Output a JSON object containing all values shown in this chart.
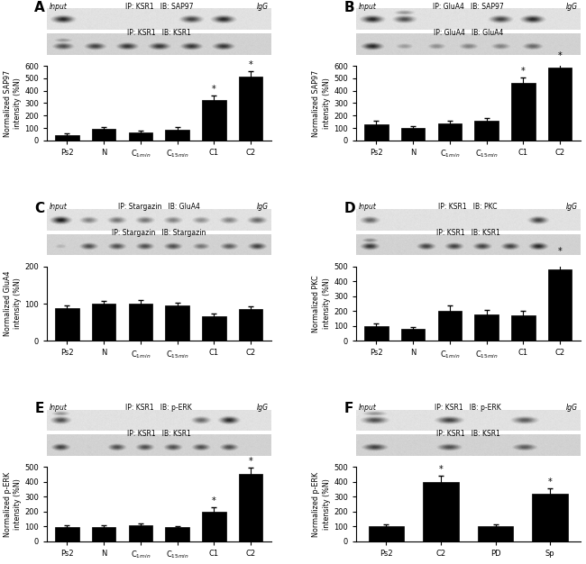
{
  "panel_A": {
    "wb1_label": "IP: KSR1   IB: SAP97",
    "wb2_label": "IP: KSR1   IB: KSR1",
    "ylabel": "Normalized SAP97\nintensity (%N)",
    "cat_labels": [
      "Ps2",
      "N",
      "C$_{1min}$",
      "C$_{15min}$",
      "C1",
      "C2"
    ],
    "values": [
      45,
      90,
      65,
      85,
      325,
      515
    ],
    "errors": [
      15,
      15,
      15,
      20,
      35,
      40
    ],
    "ylim": [
      0,
      600
    ],
    "yticks": [
      0,
      100,
      200,
      300,
      400,
      500,
      600
    ],
    "sig": [
      false,
      false,
      false,
      false,
      true,
      true
    ],
    "wb1_bands": [
      0.85,
      0.0,
      0.0,
      0.0,
      0.75,
      0.85,
      0.0
    ],
    "wb2_bands": [
      0.7,
      0.75,
      0.8,
      0.8,
      0.8,
      0.8,
      0.1
    ],
    "wb1_double": [
      false,
      false,
      false,
      false,
      false,
      false,
      false
    ],
    "wb2_double": [
      true,
      false,
      false,
      false,
      false,
      false,
      false
    ]
  },
  "panel_B": {
    "wb1_label": "IP: GluA4   IB: SAP97",
    "wb2_label": "IP: GluA4   IB: GluA4",
    "ylabel": "Normalized SAP97\nintensity (%N)",
    "cat_labels": [
      "Ps2",
      "N",
      "C$_{1min}$",
      "C$_{15min}$",
      "C1",
      "C2"
    ],
    "values": [
      130,
      100,
      140,
      155,
      460,
      590
    ],
    "errors": [
      25,
      15,
      20,
      25,
      45,
      40
    ],
    "ylim": [
      0,
      600
    ],
    "yticks": [
      0,
      100,
      200,
      300,
      400,
      500,
      600
    ],
    "sig": [
      false,
      false,
      false,
      false,
      true,
      true
    ],
    "wb1_bands": [
      0.85,
      0.7,
      0.0,
      0.0,
      0.75,
      0.85,
      0.0
    ],
    "wb2_bands": [
      0.85,
      0.4,
      0.45,
      0.5,
      0.5,
      0.6,
      0.0
    ],
    "wb1_double": [
      false,
      true,
      false,
      false,
      false,
      false,
      false
    ],
    "wb2_double": [
      false,
      false,
      false,
      false,
      false,
      false,
      false
    ]
  },
  "panel_C": {
    "wb1_label": "IP: Stargazin   IB: GluA4",
    "wb2_label": "IP: Stargazin   IB: Stargazin",
    "ylabel": "Normalized GluA4\nintensity (%N)",
    "cat_labels": [
      "Ps2",
      "N",
      "C$_{1min}$",
      "C$_{15min}$",
      "C1",
      "C2"
    ],
    "values": [
      87,
      100,
      100,
      95,
      67,
      85
    ],
    "errors": [
      8,
      8,
      10,
      8,
      6,
      8
    ],
    "ylim": [
      0,
      200
    ],
    "yticks": [
      0,
      100,
      200
    ],
    "sig": [
      false,
      false,
      false,
      false,
      false,
      false
    ],
    "wb1_bands": [
      0.9,
      0.5,
      0.55,
      0.55,
      0.5,
      0.45,
      0.5,
      0.6
    ],
    "wb2_bands": [
      0.3,
      0.7,
      0.7,
      0.7,
      0.7,
      0.55,
      0.65,
      0.75
    ],
    "wb1_double": [
      false,
      false,
      false,
      false,
      false,
      false,
      false,
      false
    ],
    "wb2_double": [
      false,
      false,
      false,
      false,
      false,
      false,
      false,
      false
    ]
  },
  "panel_D": {
    "wb1_label": "IP: KSR1   IB: PKC",
    "wb2_label": "IP: KSR1   IB: KSR1",
    "ylabel": "Normalized PKC\nintensity (%N)",
    "cat_labels": [
      "Ps2",
      "N",
      "C$_{1min}$",
      "C$_{15min}$",
      "C1",
      "C2"
    ],
    "values": [
      100,
      80,
      200,
      175,
      170,
      480
    ],
    "errors": [
      20,
      15,
      40,
      30,
      30,
      80
    ],
    "ylim": [
      0,
      500
    ],
    "yticks": [
      0,
      100,
      200,
      300,
      400,
      500
    ],
    "sig": [
      false,
      false,
      false,
      false,
      false,
      true
    ],
    "wb1_bands": [
      0.6,
      0.0,
      0.0,
      0.0,
      0.0,
      0.0,
      0.75,
      0.0
    ],
    "wb2_bands": [
      0.8,
      0.1,
      0.75,
      0.75,
      0.75,
      0.75,
      0.85,
      0.1
    ],
    "wb1_double": [
      false,
      false,
      false,
      false,
      false,
      false,
      false,
      false
    ],
    "wb2_double": [
      true,
      false,
      false,
      false,
      false,
      false,
      false,
      false
    ]
  },
  "panel_E": {
    "wb1_label": "IP: KSR1   IB: p-ERK",
    "wb2_label": "IP: KSR1   IB: KSR1",
    "ylabel": "Normalized p-ERK\nintensity (%N)",
    "cat_labels": [
      "Ps2",
      "N",
      "C$_{1min}$",
      "C$_{15min}$",
      "C1",
      "C2"
    ],
    "values": [
      98,
      97,
      107,
      95,
      200,
      455
    ],
    "errors": [
      10,
      10,
      12,
      10,
      30,
      40
    ],
    "ylim": [
      0,
      500
    ],
    "yticks": [
      0,
      100,
      200,
      300,
      400,
      500
    ],
    "sig": [
      false,
      false,
      false,
      false,
      true,
      true
    ],
    "wb1_bands": [
      0.7,
      0.0,
      0.0,
      0.0,
      0.0,
      0.6,
      0.85,
      0.0
    ],
    "wb2_bands": [
      0.75,
      0.2,
      0.7,
      0.7,
      0.7,
      0.7,
      0.7,
      0.1
    ],
    "wb1_double": [
      true,
      false,
      false,
      false,
      false,
      false,
      false,
      false
    ],
    "wb2_double": [
      false,
      false,
      false,
      false,
      false,
      false,
      false,
      false
    ]
  },
  "panel_F": {
    "wb1_label": "IP: KSR1   IB: p-ERK",
    "wb2_label": "IP: KSR1   IB: KSR1",
    "ylabel": "Normalized p-ERK\nintensity (%N)",
    "cat_labels": [
      "Ps2",
      "C2",
      "PD",
      "Sp"
    ],
    "values": [
      100,
      400,
      100,
      320
    ],
    "errors": [
      15,
      40,
      15,
      35
    ],
    "ylim": [
      0,
      500
    ],
    "yticks": [
      0,
      100,
      200,
      300,
      400,
      500
    ],
    "sig": [
      false,
      true,
      false,
      true
    ],
    "wb1_bands": [
      0.7,
      0.0,
      0.75,
      0.0,
      0.65,
      0.0
    ],
    "wb2_bands": [
      0.75,
      0.1,
      0.7,
      0.1,
      0.65,
      0.1
    ],
    "wb1_double": [
      true,
      false,
      false,
      false,
      false,
      false
    ],
    "wb2_double": [
      false,
      false,
      false,
      false,
      false,
      false
    ]
  },
  "bar_color": "#000000",
  "bg_color": "#ffffff",
  "panel_labels": [
    "A",
    "B",
    "C",
    "D",
    "E",
    "F"
  ]
}
